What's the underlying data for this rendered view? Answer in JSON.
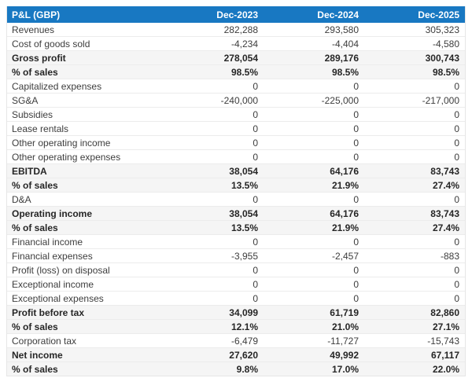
{
  "colors": {
    "header_bg": "#1878c2",
    "header_text": "#ffffff",
    "shaded_row_bg": "#f5f5f5",
    "row_divider": "#ececec",
    "body_text": "#3d3d3d",
    "bold_text": "#262626"
  },
  "chart_data": {
    "type": "table",
    "title": "P&L (GBP)",
    "columns": [
      "Dec-2023",
      "Dec-2024",
      "Dec-2025"
    ],
    "rows": [
      {
        "label": "Revenues",
        "values": [
          "282,288",
          "293,580",
          "305,323"
        ],
        "bold": false
      },
      {
        "label": "Cost of goods sold",
        "values": [
          "-4,234",
          "-4,404",
          "-4,580"
        ],
        "bold": false
      },
      {
        "label": "Gross profit",
        "values": [
          "278,054",
          "289,176",
          "300,743"
        ],
        "bold": true
      },
      {
        "label": "% of sales",
        "values": [
          "98.5%",
          "98.5%",
          "98.5%"
        ],
        "bold": true
      },
      {
        "label": "Capitalized expenses",
        "values": [
          "0",
          "0",
          "0"
        ],
        "bold": false
      },
      {
        "label": "SG&A",
        "values": [
          "-240,000",
          "-225,000",
          "-217,000"
        ],
        "bold": false
      },
      {
        "label": "Subsidies",
        "values": [
          "0",
          "0",
          "0"
        ],
        "bold": false
      },
      {
        "label": "Lease rentals",
        "values": [
          "0",
          "0",
          "0"
        ],
        "bold": false
      },
      {
        "label": "Other operating income",
        "values": [
          "0",
          "0",
          "0"
        ],
        "bold": false
      },
      {
        "label": "Other operating expenses",
        "values": [
          "0",
          "0",
          "0"
        ],
        "bold": false
      },
      {
        "label": "EBITDA",
        "values": [
          "38,054",
          "64,176",
          "83,743"
        ],
        "bold": true
      },
      {
        "label": "% of sales",
        "values": [
          "13.5%",
          "21.9%",
          "27.4%"
        ],
        "bold": true
      },
      {
        "label": "D&A",
        "values": [
          "0",
          "0",
          "0"
        ],
        "bold": false
      },
      {
        "label": "Operating income",
        "values": [
          "38,054",
          "64,176",
          "83,743"
        ],
        "bold": true
      },
      {
        "label": "% of sales",
        "values": [
          "13.5%",
          "21.9%",
          "27.4%"
        ],
        "bold": true
      },
      {
        "label": "Financial income",
        "values": [
          "0",
          "0",
          "0"
        ],
        "bold": false
      },
      {
        "label": "Financial expenses",
        "values": [
          "-3,955",
          "-2,457",
          "-883"
        ],
        "bold": false
      },
      {
        "label": "Profit (loss) on disposal",
        "values": [
          "0",
          "0",
          "0"
        ],
        "bold": false
      },
      {
        "label": "Exceptional income",
        "values": [
          "0",
          "0",
          "0"
        ],
        "bold": false
      },
      {
        "label": "Exceptional expenses",
        "values": [
          "0",
          "0",
          "0"
        ],
        "bold": false
      },
      {
        "label": "Profit before tax",
        "values": [
          "34,099",
          "61,719",
          "82,860"
        ],
        "bold": true
      },
      {
        "label": "% of sales",
        "values": [
          "12.1%",
          "21.0%",
          "27.1%"
        ],
        "bold": true
      },
      {
        "label": "Corporation tax",
        "values": [
          "-6,479",
          "-11,727",
          "-15,743"
        ],
        "bold": false
      },
      {
        "label": "Net income",
        "values": [
          "27,620",
          "49,992",
          "67,117"
        ],
        "bold": true
      },
      {
        "label": "% of sales",
        "values": [
          "9.8%",
          "17.0%",
          "22.0%"
        ],
        "bold": true
      }
    ]
  }
}
